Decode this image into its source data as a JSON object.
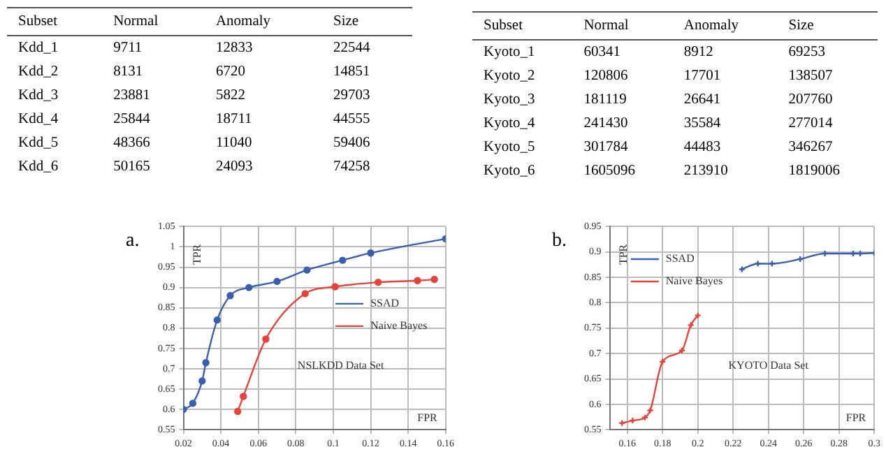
{
  "chart_data": [
    {
      "type": "heatmap",
      "ylabel": "Subset",
      "categories": [
        "Normal",
        "Anomaly",
        "Size"
      ],
      "y_categories": [
        "Kdd_1",
        "Kdd_2",
        "Kdd_3",
        "Kdd_4",
        "Kdd_5",
        "Kdd_6"
      ],
      "cells": [
        [
          9711,
          12833,
          22544
        ],
        [
          8131,
          6720,
          14851
        ],
        [
          23881,
          5822,
          29703
        ],
        [
          25844,
          18711,
          44555
        ],
        [
          48366,
          11040,
          59406
        ],
        [
          50165,
          24093,
          74258
        ]
      ],
      "data_labels": true
    },
    {
      "type": "heatmap",
      "ylabel": "Subset",
      "categories": [
        "Normal",
        "Anomaly",
        "Size"
      ],
      "y_categories": [
        "Kyoto_1",
        "Kyoto_2",
        "Kyoto_3",
        "Kyoto_4",
        "Kyoto_5",
        "Kyoto_6"
      ],
      "cells": [
        [
          60341,
          8912,
          69253
        ],
        [
          120806,
          17701,
          138507
        ],
        [
          181119,
          26641,
          207760
        ],
        [
          241430,
          35584,
          277014
        ],
        [
          301784,
          44483,
          346267
        ],
        [
          1605096,
          213910,
          1819006
        ]
      ],
      "data_labels": true
    },
    {
      "type": "line",
      "annotations": [
        "a.",
        "NSLKDD Data Set"
      ],
      "xlabel": "FPR",
      "ylabel": "TPR",
      "xlim": [
        0.02,
        0.16
      ],
      "ylim": [
        0.55,
        1.05
      ],
      "xticks": [
        0.02,
        0.04,
        0.06,
        0.08,
        0.1,
        0.12,
        0.14,
        0.16
      ],
      "yticks": [
        0.55,
        0.6,
        0.65,
        0.7,
        0.75,
        0.8,
        0.85,
        0.9,
        0.95,
        1,
        1.05
      ],
      "grid": true,
      "legend": "right",
      "marker": "circle",
      "series": [
        {
          "name": "SSAD",
          "color": "#3a5fb0",
          "x": [
            0.02,
            0.025,
            0.03,
            0.032,
            0.038,
            0.045,
            0.055,
            0.07,
            0.086,
            0.105,
            0.12,
            0.16
          ],
          "values": [
            0.6,
            0.615,
            0.67,
            0.715,
            0.82,
            0.88,
            0.9,
            0.915,
            0.943,
            0.967,
            0.985,
            1.02
          ]
        },
        {
          "name": "Naive Bayes",
          "color": "#e8433a",
          "x": [
            0.049,
            0.052,
            0.064,
            0.085,
            0.101,
            0.124,
            0.145,
            0.154
          ],
          "values": [
            0.595,
            0.632,
            0.773,
            0.885,
            0.902,
            0.913,
            0.917,
            0.92
          ]
        }
      ]
    },
    {
      "type": "line",
      "annotations": [
        "b.",
        "KYOTO Data Set"
      ],
      "xlabel": "FPR",
      "ylabel": "TPR",
      "xlim": [
        0.15,
        0.3
      ],
      "ylim": [
        0.55,
        0.95
      ],
      "xticks": [
        0.16,
        0.18,
        0.2,
        0.22,
        0.24,
        0.26,
        0.28,
        0.3
      ],
      "yticks": [
        0.55,
        0.6,
        0.65,
        0.7,
        0.75,
        0.8,
        0.85,
        0.9,
        0.95
      ],
      "grid": true,
      "legend": "top left",
      "marker": "cross",
      "series": [
        {
          "name": "SSAD",
          "color": "#3a5fb0",
          "x": [
            0.225,
            0.234,
            0.242,
            0.258,
            0.272,
            0.288,
            0.292,
            0.3
          ],
          "values": [
            0.866,
            0.877,
            0.877,
            0.886,
            0.897,
            0.897,
            0.897,
            0.898
          ]
        },
        {
          "name": "Naive Bayes",
          "color": "#e8433a",
          "x": [
            0.157,
            0.163,
            0.17,
            0.173,
            0.18,
            0.191,
            0.196,
            0.2
          ],
          "values": [
            0.563,
            0.568,
            0.574,
            0.588,
            0.684,
            0.706,
            0.756,
            0.775
          ]
        }
      ]
    }
  ]
}
